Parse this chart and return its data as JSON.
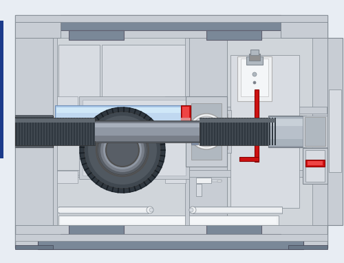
{
  "bg_color": "#e8edf3",
  "frame_color": "#b8bfc8",
  "body_color": "#c8cdd4",
  "body_light": "#d0d5da",
  "dark_blue_gray": "#7a8898",
  "darker_blue_gray": "#6a7888",
  "medium_gray": "#b0b8c0",
  "light_gray": "#d8dce2",
  "lighter_gray": "#e0e4e8",
  "white_part": "#eef0f2",
  "white_bright": "#f4f6f8",
  "blue_bar": "#aac8e8",
  "blue_bar_light": "#c0d8f0",
  "red_accent": "#cc1111",
  "red_light": "#ee4444",
  "gear_black": "#303840",
  "gear_dark": "#404850",
  "gear_mid": "#505860",
  "gear_light": "#686e76",
  "shaft_dark": "#585e66",
  "shaft_mid": "#787e88",
  "shaft_light": "#9098a4",
  "shaft_highlight": "#a8b0bc",
  "side_blue": "#1a3a8a",
  "inner_bg": "#c8cdd2",
  "slot_white": "#f0f2f4",
  "outline": "#808890"
}
